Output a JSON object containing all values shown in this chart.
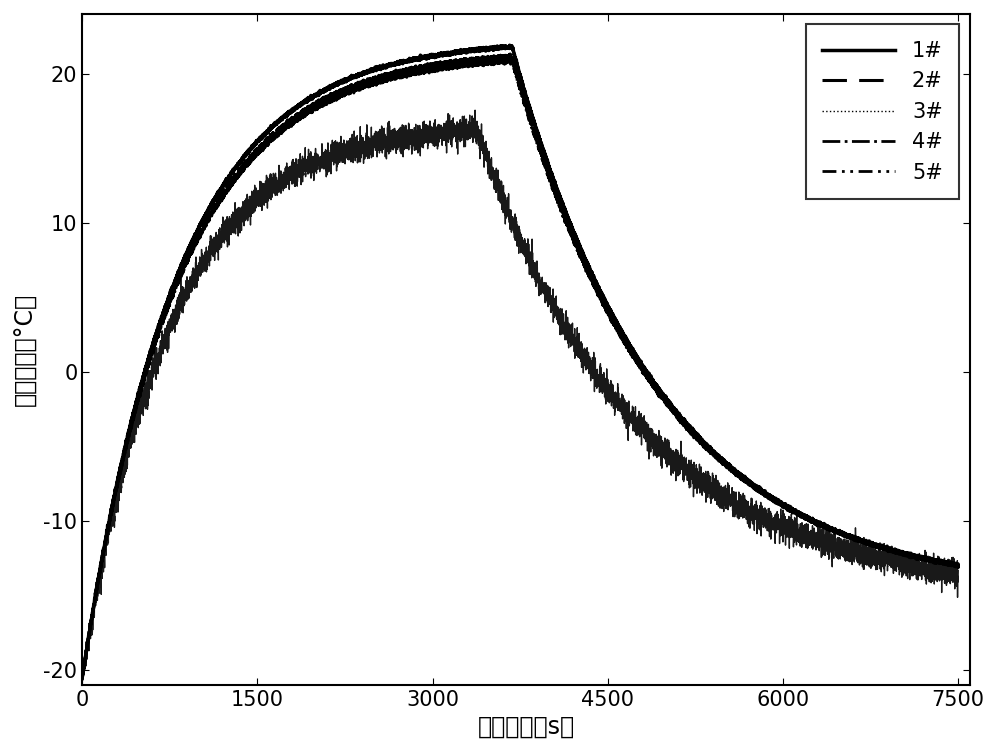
{
  "title": "",
  "xlabel": "充电时间（s）",
  "ylabel": "电池温度（°C）",
  "xlim": [
    0,
    7600
  ],
  "ylim": [
    -21,
    24
  ],
  "xticks": [
    0,
    1500,
    3000,
    4500,
    6000,
    7500
  ],
  "yticks": [
    -20,
    -10,
    0,
    10,
    20
  ],
  "background_color": "#ffffff",
  "line_color": "#000000",
  "legend_labels": [
    "1#",
    "2#",
    "3#",
    "4#",
    "5#"
  ],
  "font_size_label": 17,
  "font_size_tick": 15,
  "font_size_legend": 15,
  "curve1_start": -20.5,
  "curve1_peak": 21.8,
  "curve1_peak_time": 3680,
  "curve1_end": -13.0,
  "curve2_start": -20.5,
  "curve2_peak": 21.2,
  "curve2_peak_time": 3680,
  "curve2_end": -13.0,
  "curve3_start": -20.5,
  "curve3_peak": 16.2,
  "curve3_peak_time": 3380,
  "curve3_end": -13.5,
  "curve4_start": -20.5,
  "curve4_peak": 21.0,
  "curve4_peak_time": 3680,
  "curve4_end": -13.0,
  "curve5_start": -20.5,
  "curve5_peak": 20.8,
  "curve5_peak_time": 3680,
  "curve5_end": -13.0
}
